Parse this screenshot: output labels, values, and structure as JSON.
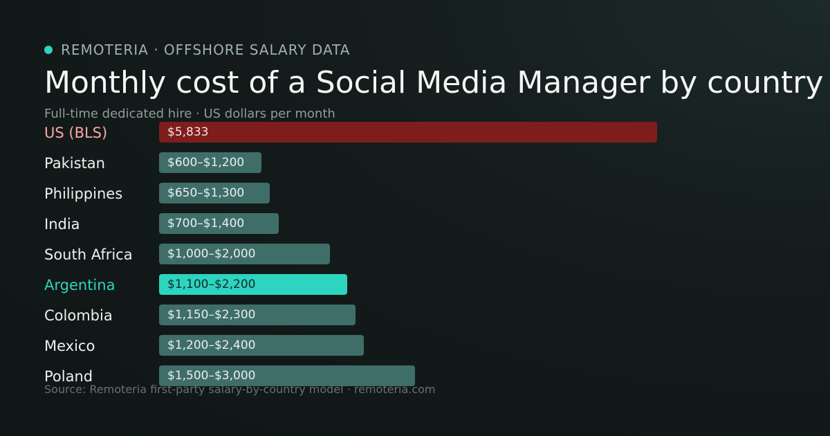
{
  "brand": {
    "label": "REMOTERIA · OFFSHORE SALARY DATA"
  },
  "source": "Source: Remoteria first-party salary-by-country model · remoteria.com",
  "colors": {
    "baseline": "#7f1d1d",
    "highlight": "#2dd4bf",
    "default": "#3f6e69",
    "baseline_label": "#fca5a5",
    "highlight_label": "#2dd4bf"
  },
  "chart_data": {
    "type": "bar",
    "orientation": "horizontal",
    "title": "Monthly cost of a Social Media Manager by country",
    "subtitle": "Full-time dedicated hire · US dollars per month",
    "unit": "USD per month",
    "grid": false,
    "categories": [
      "US (BLS)",
      "Pakistan",
      "Philippines",
      "India",
      "South Africa",
      "Argentina",
      "Colombia",
      "Mexico",
      "Poland"
    ],
    "series": [
      {
        "values": [
          5833,
          1200,
          1300,
          1400,
          2000,
          2200,
          2300,
          2400,
          3000
        ],
        "ranges": [
          [
            5833,
            5833
          ],
          [
            600,
            1200
          ],
          [
            650,
            1300
          ],
          [
            700,
            1400
          ],
          [
            1000,
            2000
          ],
          [
            1100,
            2200
          ],
          [
            1150,
            2300
          ],
          [
            1200,
            2400
          ],
          [
            1500,
            3000
          ]
        ],
        "labels": [
          "$5,833",
          "$600–$1,200",
          "$650–$1,300",
          "$700–$1,400",
          "$1,000–$2,000",
          "$1,100–$2,200",
          "$1,150–$2,300",
          "$1,200–$2,400",
          "$1,500–$3,000"
        ]
      }
    ],
    "baseline_category": "US (BLS)",
    "highlight_category": "Argentina"
  }
}
